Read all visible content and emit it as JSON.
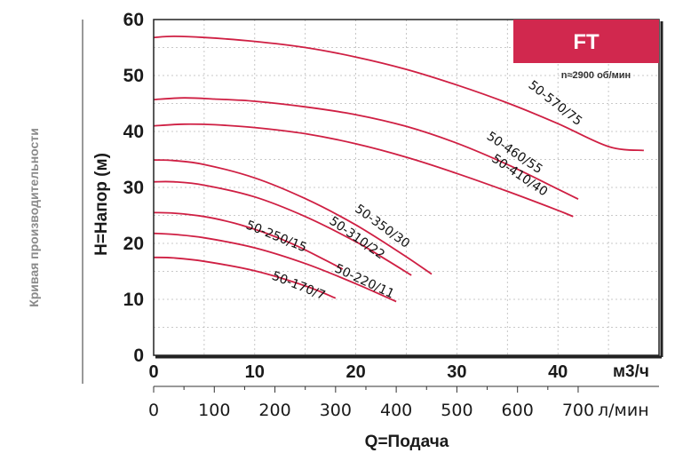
{
  "chart_data": {
    "type": "line",
    "side_caption": "Кривая производительности",
    "ylabel": "H=Напор (м)",
    "xlabel": "Q=Подача",
    "x_unit": "м3/ч",
    "x2_unit": "л/мин",
    "badge": "FT",
    "speed": "n≈2900 об/мин",
    "xlim": [
      0,
      50
    ],
    "ylim": [
      0,
      60
    ],
    "x_ticks": [
      "0",
      "10",
      "20",
      "30",
      "40"
    ],
    "y_ticks": [
      "0",
      "10",
      "20",
      "30",
      "40",
      "50",
      "60"
    ],
    "x2_ticks": [
      "0",
      "100",
      "200",
      "300",
      "400",
      "500",
      "600",
      "700"
    ],
    "colors": {
      "curve": "#cf1f43",
      "badge": "#d1284e"
    },
    "series": [
      {
        "name": "50-570/75",
        "x": [
          0,
          2,
          5,
          10,
          15,
          20,
          25,
          30,
          35,
          40,
          45,
          48.5
        ],
        "y": [
          56.8,
          57,
          56.8,
          56.1,
          55,
          53.3,
          51.1,
          48.3,
          45.1,
          41.4,
          37.3,
          36.6
        ]
      },
      {
        "name": "50-460/55",
        "x": [
          0,
          3,
          6,
          10,
          15,
          20,
          25,
          30,
          35,
          40,
          42
        ],
        "y": [
          45.7,
          46,
          45.8,
          45.4,
          44.4,
          43,
          40.9,
          37.9,
          34.1,
          29.7,
          27.9
        ]
      },
      {
        "name": "50-410/40",
        "x": [
          0,
          3,
          6,
          10,
          15,
          20,
          25,
          30,
          35,
          40,
          41.5
        ],
        "y": [
          41,
          41.3,
          41.2,
          40.7,
          39.6,
          37.8,
          35.4,
          32.5,
          29.3,
          25.9,
          24.8
        ]
      },
      {
        "name": "50-350/30",
        "x": [
          0,
          2,
          5,
          10,
          15,
          20,
          25,
          27.5
        ],
        "y": [
          34.9,
          34.8,
          34.1,
          31.7,
          28,
          23.3,
          17.6,
          14.5
        ]
      },
      {
        "name": "50-310/22",
        "x": [
          0,
          2,
          5,
          10,
          15,
          20,
          23,
          25.5
        ],
        "y": [
          31,
          31,
          30.4,
          28.3,
          24.8,
          20.3,
          17.1,
          14.3
        ]
      },
      {
        "name": "50-250/15",
        "x": [
          0,
          2,
          5,
          8,
          11,
          14,
          17,
          18.7
        ],
        "y": [
          25.5,
          25.4,
          24.8,
          23.6,
          21.9,
          19.7,
          17,
          15.4
        ]
      },
      {
        "name": "50-220/11",
        "x": [
          0,
          2,
          5,
          10,
          15,
          20,
          24
        ],
        "y": [
          21.8,
          21.6,
          21,
          19.2,
          16.4,
          12.8,
          9.6
        ]
      },
      {
        "name": "50-170/7",
        "x": [
          0,
          2,
          5,
          10,
          15,
          18
        ],
        "y": [
          17.5,
          17.4,
          16.8,
          15.1,
          12.4,
          10.2
        ]
      }
    ]
  }
}
